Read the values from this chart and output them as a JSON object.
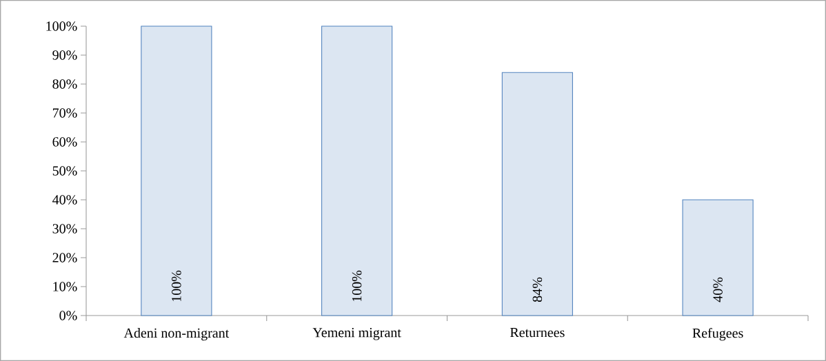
{
  "chart_data": {
    "type": "bar",
    "categories": [
      "Adeni non-migrant",
      "Yemeni migrant",
      "Returnees",
      "Refugees"
    ],
    "values": [
      100,
      100,
      84,
      40
    ],
    "value_labels": [
      "100%",
      "100%",
      "84%",
      "40%"
    ],
    "color": "#dce6f2",
    "ylim": [
      0,
      100
    ],
    "yticks": [
      {
        "value": 0,
        "label": "0%"
      },
      {
        "value": 10,
        "label": "10%"
      },
      {
        "value": 20,
        "label": "20%"
      },
      {
        "value": 30,
        "label": "30%"
      },
      {
        "value": 40,
        "label": "40%"
      },
      {
        "value": 50,
        "label": "50%"
      },
      {
        "value": 60,
        "label": "60%"
      },
      {
        "value": 70,
        "label": "70%"
      },
      {
        "value": 80,
        "label": "80%"
      },
      {
        "value": 90,
        "label": "90%"
      },
      {
        "value": 100,
        "label": "100%"
      }
    ],
    "grid": false
  }
}
